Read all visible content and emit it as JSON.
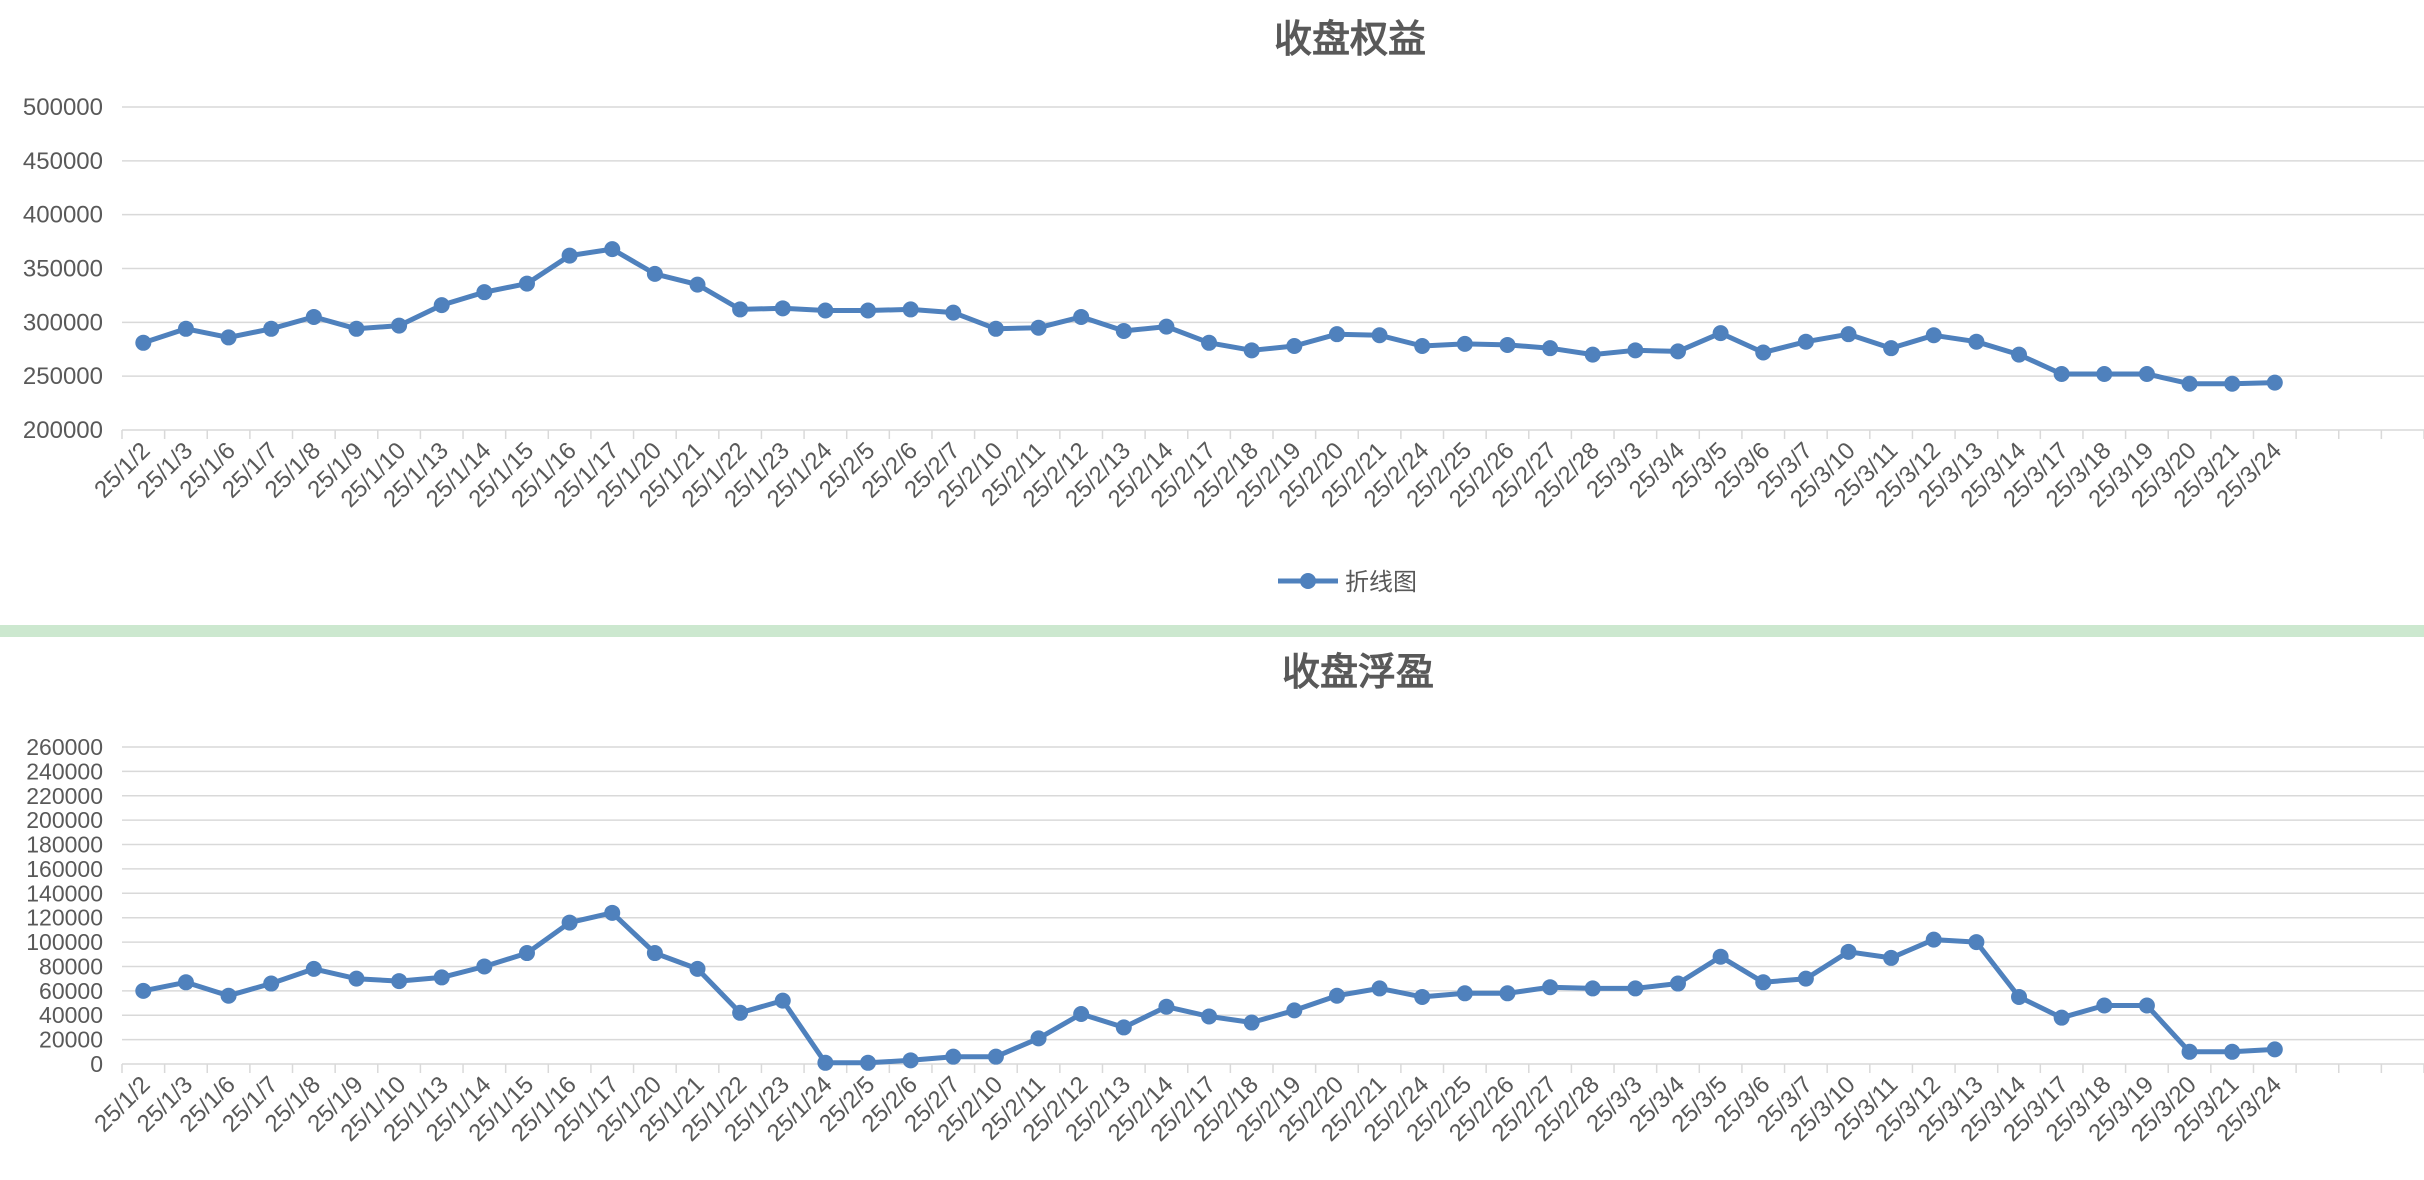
{
  "chart_data": [
    {
      "type": "line",
      "title": "收盘权益",
      "categories": [
        "25/1/2",
        "25/1/3",
        "25/1/6",
        "25/1/7",
        "25/1/8",
        "25/1/9",
        "25/1/10",
        "25/1/13",
        "25/1/14",
        "25/1/15",
        "25/1/16",
        "25/1/17",
        "25/1/20",
        "25/1/21",
        "25/1/22",
        "25/1/23",
        "25/1/24",
        "25/2/5",
        "25/2/6",
        "25/2/7",
        "25/2/10",
        "25/2/11",
        "25/2/12",
        "25/2/13",
        "25/2/14",
        "25/2/17",
        "25/2/18",
        "25/2/19",
        "25/2/20",
        "25/2/21",
        "25/2/24",
        "25/2/25",
        "25/2/26",
        "25/2/27",
        "25/2/28",
        "25/3/3",
        "25/3/4",
        "25/3/5",
        "25/3/6",
        "25/3/7",
        "25/3/10",
        "25/3/11",
        "25/3/12",
        "25/3/13",
        "25/3/14",
        "25/3/17",
        "25/3/18",
        "25/3/19",
        "25/3/20",
        "25/3/21",
        "25/3/24"
      ],
      "series": [
        {
          "name": "折线图",
          "values": [
            281000,
            294000,
            286000,
            294000,
            305000,
            294000,
            297000,
            316000,
            328000,
            336000,
            362000,
            368000,
            345000,
            335000,
            312000,
            313000,
            311000,
            311000,
            312000,
            309000,
            294000,
            295000,
            305000,
            292000,
            296000,
            281000,
            274000,
            278000,
            289000,
            288000,
            278000,
            280000,
            279000,
            276000,
            270000,
            274000,
            273000,
            290000,
            272000,
            282000,
            289000,
            276000,
            288000,
            282000,
            270000,
            252000,
            252000,
            252000,
            243000,
            243000,
            244000
          ]
        }
      ],
      "yticks": [
        "200000",
        "250000",
        "300000",
        "350000",
        "400000",
        "450000",
        "500000"
      ],
      "ylim": [
        200000,
        500000
      ],
      "grid": true,
      "legend": "bottom",
      "xlabel": "",
      "ylabel": ""
    },
    {
      "type": "line",
      "title": "收盘浮盈",
      "categories": [
        "25/1/2",
        "25/1/3",
        "25/1/6",
        "25/1/7",
        "25/1/8",
        "25/1/9",
        "25/1/10",
        "25/1/13",
        "25/1/14",
        "25/1/15",
        "25/1/16",
        "25/1/17",
        "25/1/20",
        "25/1/21",
        "25/1/22",
        "25/1/23",
        "25/1/24",
        "25/2/5",
        "25/2/6",
        "25/2/7",
        "25/2/10",
        "25/2/11",
        "25/2/12",
        "25/2/13",
        "25/2/14",
        "25/2/17",
        "25/2/18",
        "25/2/19",
        "25/2/20",
        "25/2/21",
        "25/2/24",
        "25/2/25",
        "25/2/26",
        "25/2/27",
        "25/2/28",
        "25/3/3",
        "25/3/4",
        "25/3/5",
        "25/3/6",
        "25/3/7",
        "25/3/10",
        "25/3/11",
        "25/3/12",
        "25/3/13",
        "25/3/14",
        "25/3/17",
        "25/3/18",
        "25/3/19",
        "25/3/20",
        "25/3/21",
        "25/3/24"
      ],
      "series": [
        {
          "values": [
            60000,
            67000,
            56000,
            66000,
            78000,
            70000,
            68000,
            71000,
            80000,
            91000,
            116000,
            124000,
            91000,
            78000,
            42000,
            52000,
            1000,
            1000,
            3000,
            6000,
            6000,
            21000,
            41000,
            30000,
            47000,
            39000,
            34000,
            44000,
            56000,
            62000,
            55000,
            58000,
            58000,
            63000,
            62000,
            62000,
            66000,
            88000,
            67000,
            70000,
            92000,
            87000,
            102000,
            100000,
            55000,
            38000,
            48000,
            48000,
            10000,
            10000,
            12000
          ]
        }
      ],
      "yticks": [
        "0",
        "20000",
        "40000",
        "60000",
        "80000",
        "100000",
        "120000",
        "140000",
        "160000",
        "180000",
        "200000",
        "220000",
        "240000",
        "260000"
      ],
      "ylim": [
        0,
        260000
      ],
      "grid": true,
      "xlabel": "",
      "ylabel": ""
    }
  ],
  "colors": {
    "series": "#4f81bd",
    "grid": "#d9d9d9",
    "text": "#595959",
    "splitter": "#cce8cf"
  }
}
